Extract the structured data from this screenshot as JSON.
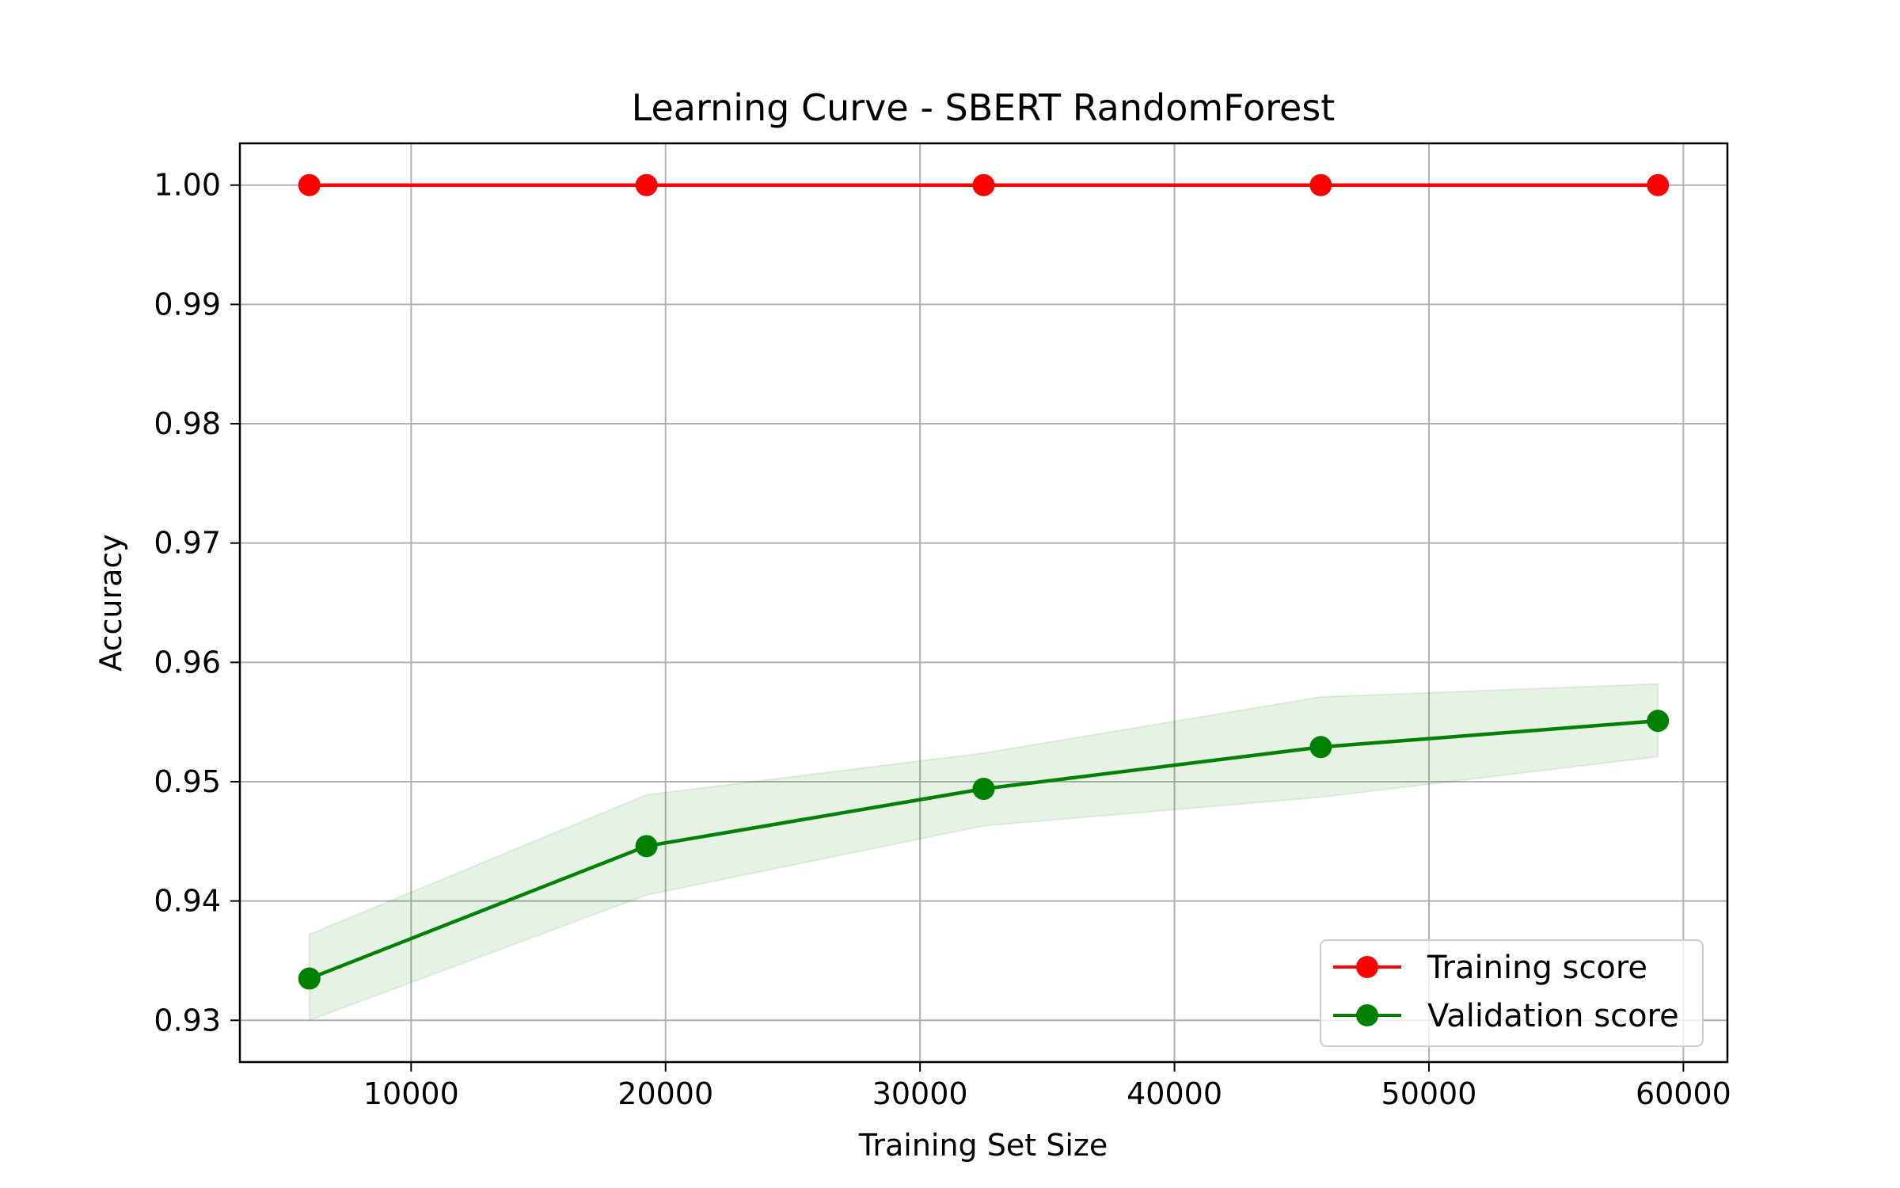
{
  "chart_data": {
    "type": "line",
    "title": "Learning Curve - SBERT RandomForest",
    "xlabel": "Training Set Size",
    "ylabel": "Accuracy",
    "xlim": [
      3270,
      61730
    ],
    "ylim": [
      0.9265,
      1.0035
    ],
    "x_ticks": [
      10000,
      20000,
      30000,
      40000,
      50000,
      60000
    ],
    "y_ticks": [
      0.93,
      0.94,
      0.95,
      0.96,
      0.97,
      0.98,
      0.99,
      1.0
    ],
    "grid": true,
    "legend_position": "lower-right",
    "x": [
      6000,
      19250,
      32500,
      45750,
      59000
    ],
    "series": [
      {
        "name": "Training score",
        "color": "#ff0000",
        "marker": "circle",
        "values": [
          1.0,
          1.0,
          1.0,
          1.0,
          1.0
        ],
        "band_lower": [
          1.0,
          1.0,
          1.0,
          1.0,
          1.0
        ],
        "band_upper": [
          1.0,
          1.0,
          1.0,
          1.0,
          1.0
        ]
      },
      {
        "name": "Validation score",
        "color": "#008000",
        "marker": "circle",
        "values": [
          0.9335,
          0.9446,
          0.9494,
          0.9529,
          0.9551
        ],
        "band_lower": [
          0.93,
          0.9405,
          0.9463,
          0.9487,
          0.9521
        ],
        "band_upper": [
          0.9372,
          0.9489,
          0.9524,
          0.9571,
          0.9582
        ]
      }
    ]
  }
}
